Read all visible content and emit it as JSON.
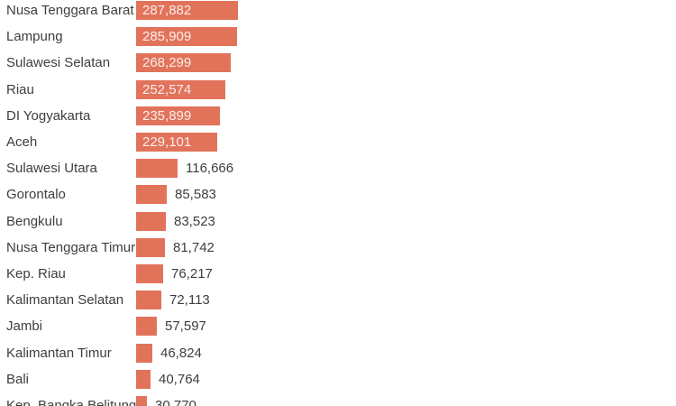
{
  "chart_data": {
    "type": "bar",
    "orientation": "horizontal",
    "title": "",
    "xlabel": "",
    "ylabel": "",
    "grid": false,
    "legend": false,
    "xlim": [
      0,
      287882
    ],
    "bar_color": "#e2735b",
    "category_label_color": "#3e3e3e",
    "value_label_inside_color": "rgba(255,255,255,0.87)",
    "value_label_outside_color": "#3e3e3e",
    "background_color": "#ffffff",
    "categories": [
      "Nusa Tenggara Barat",
      "Lampung",
      "Sulawesi Selatan",
      "Riau",
      "DI Yogyakarta",
      "Aceh",
      "Sulawesi Utara",
      "Gorontalo",
      "Bengkulu",
      "Nusa Tenggara Timur",
      "Kep. Riau",
      "Kalimantan Selatan",
      "Jambi",
      "Kalimantan Timur",
      "Bali",
      "Kep. Bangka Belitung"
    ],
    "values": [
      287882,
      285909,
      268299,
      252574,
      235899,
      229101,
      116666,
      85583,
      83523,
      81742,
      76217,
      72113,
      57597,
      46824,
      40764,
      30770
    ],
    "value_labels": [
      "287,882",
      "285,909",
      "268,299",
      "252,574",
      "235,899",
      "229,101",
      "116,666",
      "85,583",
      "83,523",
      "81,742",
      "76,217",
      "72,113",
      "57,597",
      "46,824",
      "40,764",
      "30,770"
    ],
    "value_label_positions": [
      "inside",
      "inside",
      "inside",
      "inside",
      "inside",
      "inside",
      "outside",
      "outside",
      "outside",
      "outside",
      "outside",
      "outside",
      "outside",
      "outside",
      "outside",
      "outside"
    ]
  }
}
